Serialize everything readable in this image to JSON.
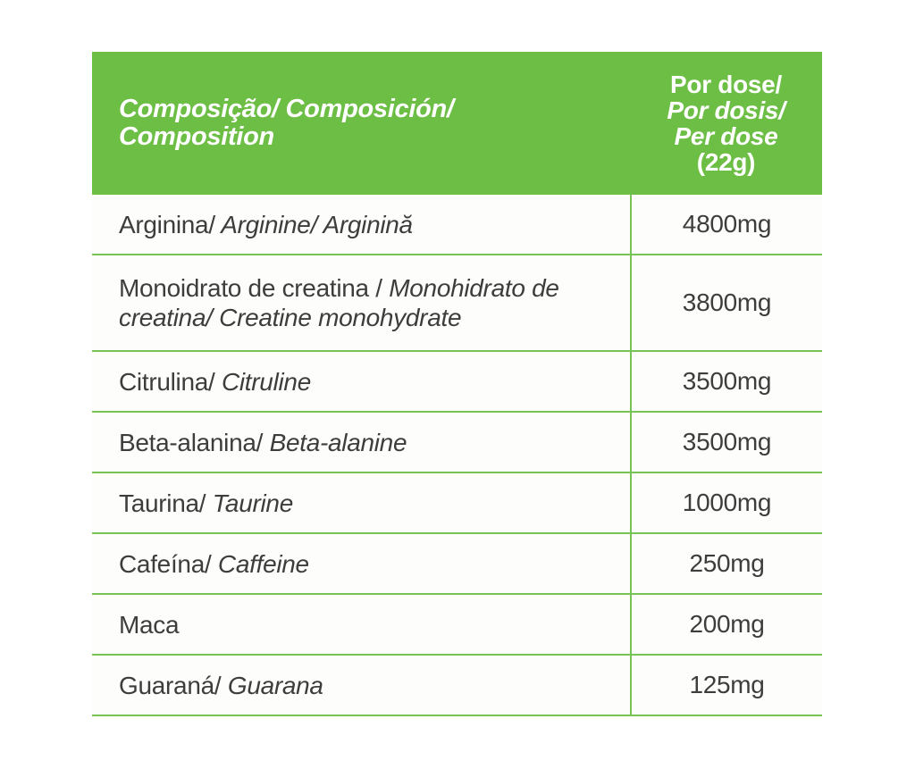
{
  "colors": {
    "header_green": "#6cbe45",
    "rule_green": "#77c354",
    "row_background": "#fdfefb",
    "body_text": "#3d3d3d",
    "header_text": "#ffffff"
  },
  "header": {
    "composition_line1": "Composição/ Composición/",
    "composition_line2": "Composition",
    "dose_line1": "Por dose/",
    "dose_line2": "Por dosis/",
    "dose_line3": "Per dose",
    "dose_line4": "(22g)"
  },
  "table": {
    "rows": [
      {
        "name_regular": "Arginina/",
        "name_italic": " Arginine/ Arginină",
        "value": "4800mg"
      },
      {
        "name_regular": "Monoidrato de creatina /",
        "name_italic": " Monohidrato de creatina/ Creatine monohydrate",
        "value": "3800mg"
      },
      {
        "name_regular": "Citrulina/",
        "name_italic": " Citruline",
        "value": "3500mg"
      },
      {
        "name_regular": "Beta-alanina/",
        "name_italic": " Beta-alanine",
        "value": "3500mg"
      },
      {
        "name_regular": "Taurina/",
        "name_italic": " Taurine",
        "value": "1000mg"
      },
      {
        "name_regular": "Cafeína/",
        "name_italic": " Caffeine",
        "value": "250mg"
      },
      {
        "name_regular": "Maca",
        "name_italic": "",
        "value": "200mg"
      },
      {
        "name_regular": "Guaraná/",
        "name_italic": " Guarana",
        "value": "125mg"
      }
    ]
  }
}
